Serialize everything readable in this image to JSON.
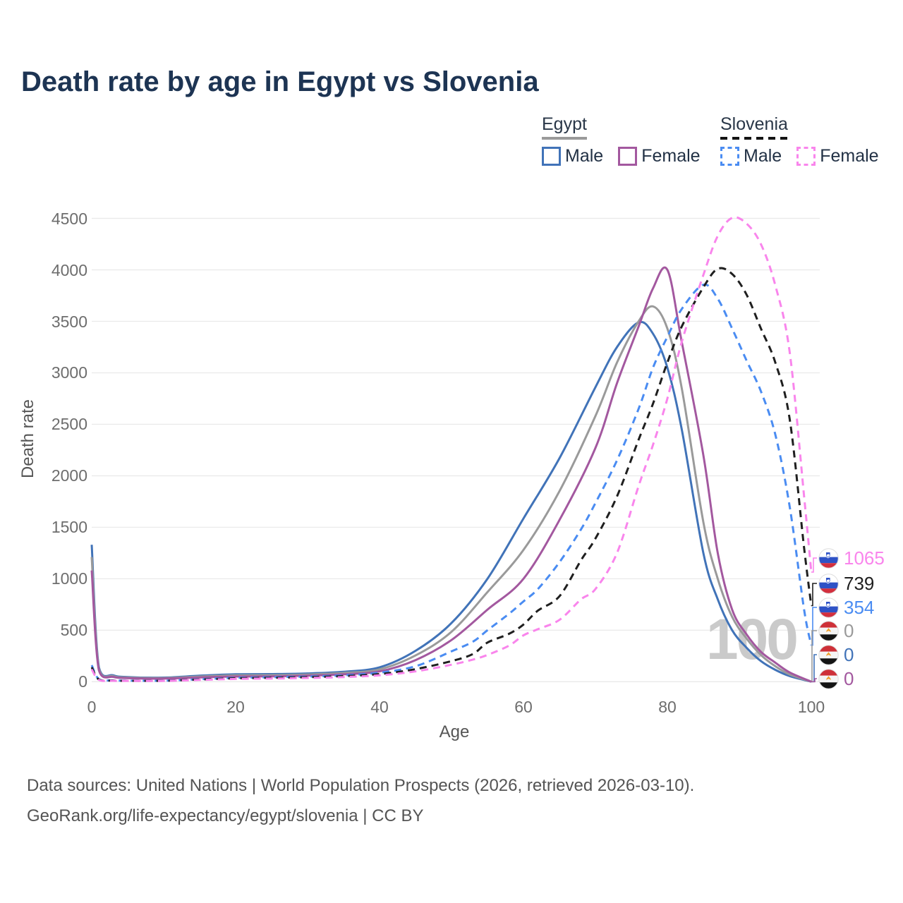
{
  "title": "Death rate by age in Egypt vs Slovenia",
  "legend": {
    "groups": [
      {
        "label": "Egypt",
        "line_style": "solid",
        "swatch_color": "#9a9a9a",
        "items": [
          {
            "label": "Male",
            "color": "#4173b8"
          },
          {
            "label": "Female",
            "color": "#a3589f"
          }
        ]
      },
      {
        "label": "Slovenia",
        "line_style": "dashed",
        "swatch_color": "#141414",
        "items": [
          {
            "label": "Male",
            "color": "#4a8cf2"
          },
          {
            "label": "Female",
            "color": "#f985ec"
          }
        ]
      }
    ]
  },
  "axes": {
    "y": {
      "title": "Death rate",
      "ticks": [
        "0",
        "500",
        "1000",
        "1500",
        "2000",
        "2500",
        "3000",
        "3500",
        "4000",
        "4500"
      ]
    },
    "x": {
      "title": "Age",
      "ticks": [
        "0",
        "20",
        "40",
        "60",
        "80",
        "100"
      ]
    }
  },
  "watermark": "100",
  "end_labels": [
    {
      "value": "1065",
      "series": "slovenia-female",
      "flag": "slovenia",
      "color": "#f985ec"
    },
    {
      "value": "739",
      "series": "slovenia-both",
      "flag": "slovenia",
      "color": "#1f1f1f"
    },
    {
      "value": "354",
      "series": "slovenia-male",
      "flag": "slovenia",
      "color": "#4a8cf2"
    },
    {
      "value": "0",
      "series": "egypt-both",
      "flag": "egypt",
      "color": "#9a9a9a"
    },
    {
      "value": "0",
      "series": "egypt-male",
      "flag": "egypt",
      "color": "#4173b8"
    },
    {
      "value": "0",
      "series": "egypt-female",
      "flag": "egypt",
      "color": "#a3589f"
    }
  ],
  "footer": {
    "line1": "Data sources: United Nations | World Population Prospects (2026, retrieved 2026-03-10).",
    "line2": "GeoRank.org/life-expectancy/egypt/slovenia | CC BY"
  },
  "chart_data": {
    "type": "line",
    "title": "Death rate by age in Egypt vs Slovenia",
    "xlabel": "Age",
    "ylabel": "Death rate",
    "xlim": [
      0,
      100
    ],
    "ylim": [
      0,
      4500
    ],
    "grid": "horizontal",
    "legend_position": "top-right",
    "series": [
      {
        "name": "egypt-male",
        "country": "Egypt",
        "sex": "Male",
        "color": "#4173b8",
        "dash": "solid",
        "end_value": 0,
        "points": [
          [
            0,
            1330
          ],
          [
            1,
            140
          ],
          [
            3,
            62
          ],
          [
            5,
            45
          ],
          [
            10,
            40
          ],
          [
            15,
            58
          ],
          [
            20,
            72
          ],
          [
            25,
            74
          ],
          [
            30,
            80
          ],
          [
            35,
            96
          ],
          [
            40,
            140
          ],
          [
            45,
            300
          ],
          [
            50,
            570
          ],
          [
            55,
            1000
          ],
          [
            60,
            1585
          ],
          [
            65,
            2170
          ],
          [
            70,
            2860
          ],
          [
            73,
            3250
          ],
          [
            76,
            3490
          ],
          [
            78,
            3380
          ],
          [
            80,
            3050
          ],
          [
            82,
            2450
          ],
          [
            85,
            1250
          ],
          [
            87,
            800
          ],
          [
            89,
            500
          ],
          [
            91,
            330
          ],
          [
            93,
            200
          ],
          [
            95,
            115
          ],
          [
            97,
            55
          ],
          [
            100,
            0
          ]
        ]
      },
      {
        "name": "egypt-both",
        "country": "Egypt",
        "sex": "Both",
        "color": "#9a9a9a",
        "dash": "solid",
        "end_value": 0,
        "points": [
          [
            0,
            1210
          ],
          [
            1,
            125
          ],
          [
            3,
            54
          ],
          [
            5,
            40
          ],
          [
            10,
            35
          ],
          [
            15,
            50
          ],
          [
            20,
            62
          ],
          [
            25,
            64
          ],
          [
            30,
            70
          ],
          [
            35,
            85
          ],
          [
            40,
            120
          ],
          [
            45,
            255
          ],
          [
            50,
            485
          ],
          [
            55,
            870
          ],
          [
            60,
            1280
          ],
          [
            65,
            1850
          ],
          [
            70,
            2580
          ],
          [
            73,
            3100
          ],
          [
            76,
            3500
          ],
          [
            78,
            3645
          ],
          [
            80,
            3430
          ],
          [
            82,
            2850
          ],
          [
            85,
            1550
          ],
          [
            87,
            1000
          ],
          [
            89,
            630
          ],
          [
            91,
            420
          ],
          [
            93,
            260
          ],
          [
            95,
            150
          ],
          [
            97,
            70
          ],
          [
            100,
            0
          ]
        ]
      },
      {
        "name": "egypt-female",
        "country": "Egypt",
        "sex": "Female",
        "color": "#a3589f",
        "dash": "solid",
        "end_value": 0,
        "points": [
          [
            0,
            1080
          ],
          [
            1,
            110
          ],
          [
            3,
            46
          ],
          [
            5,
            35
          ],
          [
            10,
            30
          ],
          [
            15,
            42
          ],
          [
            20,
            50
          ],
          [
            25,
            52
          ],
          [
            30,
            58
          ],
          [
            35,
            72
          ],
          [
            40,
            100
          ],
          [
            45,
            210
          ],
          [
            50,
            405
          ],
          [
            55,
            700
          ],
          [
            60,
            1000
          ],
          [
            65,
            1570
          ],
          [
            70,
            2270
          ],
          [
            73,
            2900
          ],
          [
            76,
            3450
          ],
          [
            78,
            3820
          ],
          [
            80,
            4000
          ],
          [
            82,
            3300
          ],
          [
            85,
            2200
          ],
          [
            87,
            1250
          ],
          [
            89,
            700
          ],
          [
            91,
            460
          ],
          [
            93,
            290
          ],
          [
            95,
            185
          ],
          [
            97,
            90
          ],
          [
            100,
            0
          ]
        ]
      },
      {
        "name": "slovenia-male",
        "country": "Slovenia",
        "sex": "Male",
        "color": "#4a8cf2",
        "dash": "dashed",
        "end_value": 354,
        "points": [
          [
            0,
            160
          ],
          [
            1,
            25
          ],
          [
            3,
            13
          ],
          [
            5,
            10
          ],
          [
            10,
            10
          ],
          [
            15,
            24
          ],
          [
            20,
            38
          ],
          [
            25,
            44
          ],
          [
            30,
            50
          ],
          [
            35,
            62
          ],
          [
            40,
            88
          ],
          [
            45,
            150
          ],
          [
            50,
            295
          ],
          [
            53,
            390
          ],
          [
            55,
            500
          ],
          [
            58,
            660
          ],
          [
            60,
            780
          ],
          [
            62,
            900
          ],
          [
            65,
            1160
          ],
          [
            68,
            1480
          ],
          [
            70,
            1735
          ],
          [
            73,
            2150
          ],
          [
            76,
            2650
          ],
          [
            78,
            3050
          ],
          [
            80,
            3350
          ],
          [
            82,
            3620
          ],
          [
            85,
            3855
          ],
          [
            87,
            3720
          ],
          [
            89,
            3430
          ],
          [
            91,
            3120
          ],
          [
            93,
            2820
          ],
          [
            95,
            2400
          ],
          [
            97,
            1700
          ],
          [
            99,
            700
          ],
          [
            100,
            354
          ]
        ]
      },
      {
        "name": "slovenia-both",
        "country": "Slovenia",
        "sex": "Both",
        "color": "#1f1f1f",
        "dash": "dashed",
        "end_value": 739,
        "points": [
          [
            0,
            140
          ],
          [
            1,
            22
          ],
          [
            3,
            11
          ],
          [
            5,
            9
          ],
          [
            10,
            9
          ],
          [
            15,
            21
          ],
          [
            20,
            33
          ],
          [
            25,
            38
          ],
          [
            30,
            44
          ],
          [
            35,
            54
          ],
          [
            40,
            74
          ],
          [
            45,
            122
          ],
          [
            50,
            200
          ],
          [
            53,
            270
          ],
          [
            55,
            380
          ],
          [
            58,
            465
          ],
          [
            60,
            555
          ],
          [
            62,
            690
          ],
          [
            65,
            830
          ],
          [
            68,
            1180
          ],
          [
            70,
            1390
          ],
          [
            73,
            1800
          ],
          [
            76,
            2350
          ],
          [
            78,
            2700
          ],
          [
            80,
            3100
          ],
          [
            82,
            3450
          ],
          [
            85,
            3830
          ],
          [
            87,
            4010
          ],
          [
            89,
            3960
          ],
          [
            91,
            3760
          ],
          [
            93,
            3430
          ],
          [
            95,
            3100
          ],
          [
            97,
            2550
          ],
          [
            99,
            1300
          ],
          [
            100,
            739
          ]
        ]
      },
      {
        "name": "slovenia-female",
        "country": "Slovenia",
        "sex": "Female",
        "color": "#f985ec",
        "dash": "dashed",
        "end_value": 1065,
        "points": [
          [
            0,
            120
          ],
          [
            1,
            18
          ],
          [
            3,
            9
          ],
          [
            5,
            8
          ],
          [
            10,
            8
          ],
          [
            15,
            17
          ],
          [
            20,
            27
          ],
          [
            25,
            31
          ],
          [
            30,
            36
          ],
          [
            35,
            45
          ],
          [
            40,
            62
          ],
          [
            45,
            100
          ],
          [
            50,
            165
          ],
          [
            53,
            215
          ],
          [
            55,
            260
          ],
          [
            58,
            350
          ],
          [
            60,
            450
          ],
          [
            62,
            510
          ],
          [
            65,
            600
          ],
          [
            68,
            800
          ],
          [
            70,
            900
          ],
          [
            73,
            1250
          ],
          [
            76,
            1900
          ],
          [
            78,
            2300
          ],
          [
            80,
            2750
          ],
          [
            82,
            3300
          ],
          [
            85,
            3950
          ],
          [
            87,
            4330
          ],
          [
            89,
            4505
          ],
          [
            91,
            4450
          ],
          [
            93,
            4250
          ],
          [
            95,
            3850
          ],
          [
            97,
            3200
          ],
          [
            99,
            1800
          ],
          [
            100,
            1065
          ]
        ]
      }
    ]
  }
}
